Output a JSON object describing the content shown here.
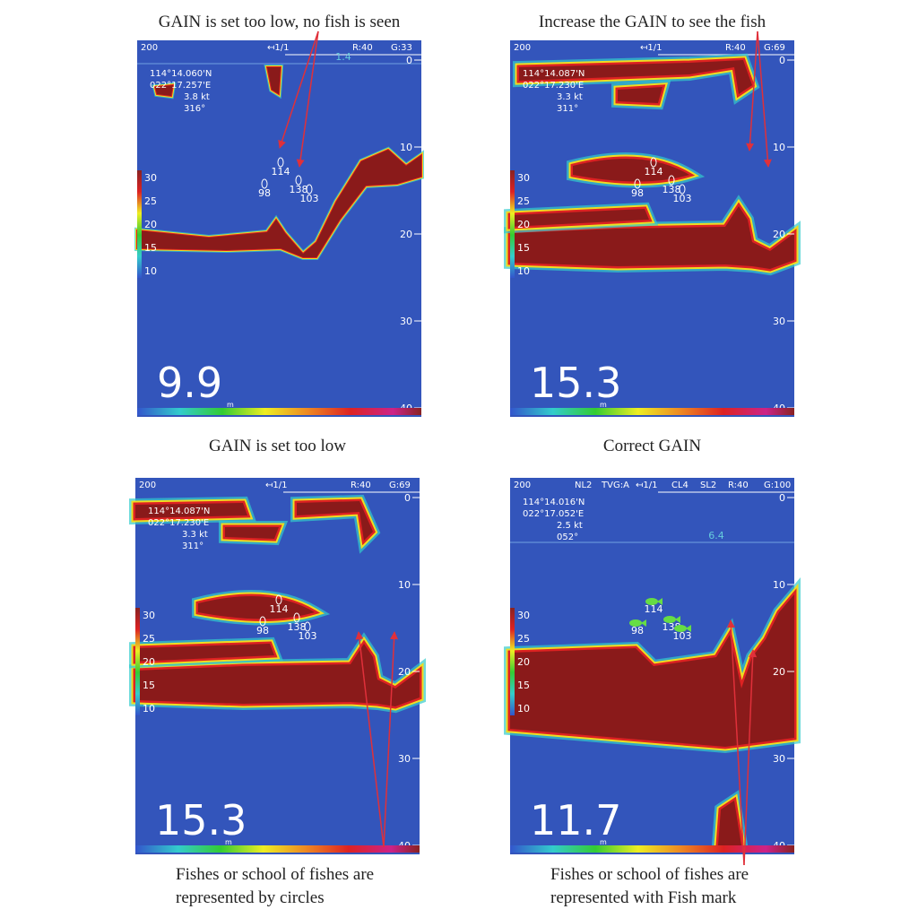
{
  "panels": [
    {
      "caption": "GAIN is set too low, no fish is seen",
      "header": [
        "200",
        "↤1/1",
        "R:40",
        "G:33"
      ],
      "depth_marker": "1.4",
      "position": [
        "114°14.060'N",
        "022°17.257'E",
        "3.8 kt",
        "316°"
      ],
      "depth_scale": [
        0,
        10,
        20,
        30,
        40
      ],
      "color_scale": [
        30,
        25,
        20,
        15,
        10
      ],
      "fish_labels": [
        114,
        98,
        138,
        103
      ],
      "depth": 9.9,
      "unit": "m"
    },
    {
      "caption": "Increase the GAIN to see the fish",
      "header": [
        "200",
        "↤1/1",
        "R:40",
        "G:69"
      ],
      "position": [
        "114°14.087'N",
        "022°17.230'E",
        "3.3 kt",
        "311°"
      ],
      "depth_scale": [
        0,
        10,
        20,
        30,
        40
      ],
      "color_scale": [
        30,
        25,
        20,
        15,
        10
      ],
      "fish_labels": [
        114,
        98,
        138,
        103
      ],
      "depth": 15.3,
      "unit": "m"
    },
    {
      "caption": "GAIN is set too low",
      "header": [
        "200",
        "↤1/1",
        "R:40",
        "G:69"
      ],
      "position": [
        "114°14.087'N",
        "022°17.230'E",
        "3.3 kt",
        "311°"
      ],
      "depth_scale": [
        0,
        10,
        20,
        30,
        40
      ],
      "color_scale": [
        30,
        25,
        20,
        15,
        10
      ],
      "fish_labels": [
        114,
        98,
        138,
        103
      ],
      "depth": 15.3,
      "unit": "m",
      "note": [
        "Fishes or school of fishes are",
        "represented by circles"
      ]
    },
    {
      "caption": "Correct GAIN",
      "header": [
        "200",
        "NL2",
        "TVG:A",
        "↤1/1",
        "CL4",
        "SL2",
        "R:40",
        "G:100"
      ],
      "depth_marker": "6.4",
      "position": [
        "114°14.016'N",
        "022°17.052'E",
        "2.5 kt",
        "052°"
      ],
      "depth_scale": [
        0,
        10,
        20,
        30,
        40
      ],
      "color_scale": [
        30,
        25,
        20,
        15,
        10
      ],
      "fish_labels": [
        114,
        98,
        138,
        103
      ],
      "depth": 11.7,
      "unit": "m",
      "note": [
        "Fishes or school of fishes are",
        "represented with Fish mark"
      ]
    }
  ]
}
